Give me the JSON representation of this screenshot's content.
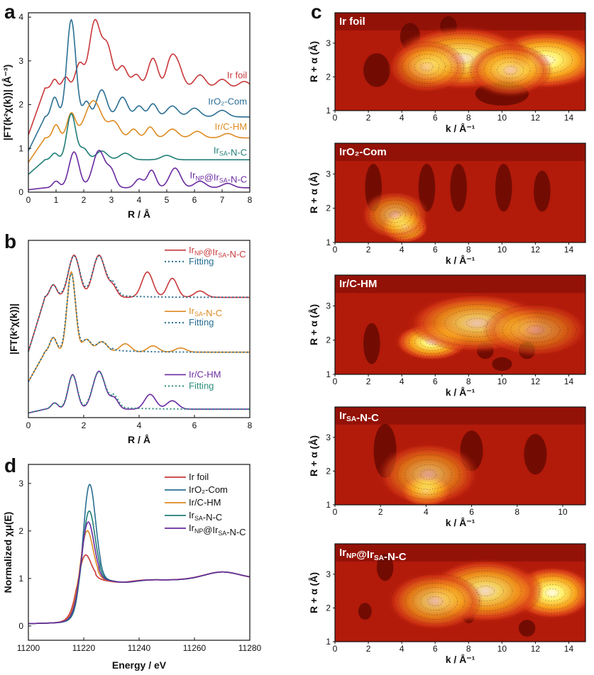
{
  "panels": {
    "a": {
      "label": "a",
      "chart_data": {
        "type": "line",
        "xlabel": "R / Å",
        "ylabel": "|FT(k²χ(k))| (Å⁻³)",
        "xlim": [
          0,
          8
        ],
        "ylim": [
          0,
          4.1
        ],
        "xticks": [
          "0",
          "1",
          "2",
          "3",
          "4",
          "5",
          "6",
          "7",
          "8"
        ],
        "yticks": [
          "0",
          "1",
          "2",
          "3",
          "4"
        ],
        "series": [
          {
            "name": "Ir foil",
            "color": "#c8383a",
            "offset": 2.38,
            "labelY": 2.6,
            "peaks": [
              [
                0.95,
                0.2,
                0.1
              ],
              [
                1.35,
                0.25,
                0.12
              ],
              [
                1.85,
                0.55,
                0.15
              ],
              [
                2.4,
                1.52,
                0.2
              ],
              [
                2.85,
                0.92,
                0.18
              ],
              [
                3.4,
                0.5,
                0.18
              ],
              [
                3.9,
                0.3,
                0.15
              ],
              [
                4.5,
                0.68,
                0.18
              ],
              [
                5.1,
                0.4,
                0.15
              ],
              [
                5.35,
                0.6,
                0.2
              ],
              [
                6.2,
                0.3,
                0.2
              ],
              [
                7.0,
                0.2,
                0.2
              ],
              [
                7.8,
                0.15,
                0.2
              ]
            ]
          },
          {
            "name": "IrO₂-Com",
            "color": "#2a6f93",
            "offset": 1.72,
            "labelY": 2.0,
            "peaks": [
              [
                0.95,
                0.45,
                0.12
              ],
              [
                1.55,
                2.22,
                0.16
              ],
              [
                2.1,
                0.35,
                0.12
              ],
              [
                2.65,
                0.62,
                0.18
              ],
              [
                3.4,
                0.45,
                0.18
              ],
              [
                4.0,
                0.25,
                0.15
              ],
              [
                4.5,
                0.3,
                0.15
              ],
              [
                5.2,
                0.25,
                0.2
              ],
              [
                6.0,
                0.2,
                0.2
              ],
              [
                7.0,
                0.15,
                0.2
              ]
            ]
          },
          {
            "name": "Ir/C-HM",
            "color": "#de8a22",
            "offset": 1.24,
            "labelY": 1.43,
            "peaks": [
              [
                1.0,
                0.3,
                0.12
              ],
              [
                1.55,
                0.55,
                0.15
              ],
              [
                2.35,
                0.85,
                0.3
              ],
              [
                3.1,
                0.35,
                0.2
              ],
              [
                3.8,
                0.2,
                0.15
              ],
              [
                4.4,
                0.25,
                0.15
              ],
              [
                5.2,
                0.2,
                0.2
              ],
              [
                6.1,
                0.15,
                0.2
              ],
              [
                7.2,
                0.1,
                0.2
              ]
            ]
          },
          {
            "name": "Ir_SA-N-C",
            "color": "#1f7d76",
            "offset": 0.74,
            "labelY": 0.88,
            "peaks": [
              [
                0.95,
                0.15,
                0.12
              ],
              [
                1.55,
                1.05,
                0.16
              ],
              [
                2.0,
                0.25,
                0.15
              ],
              [
                2.65,
                0.2,
                0.2
              ],
              [
                3.5,
                0.15,
                0.2
              ],
              [
                5.0,
                0.1,
                0.2
              ]
            ]
          },
          {
            "name": "Ir_NP@Ir_SA-N-C",
            "color": "#6a2aa0",
            "offset": 0.1,
            "labelY": 0.32,
            "peaks": [
              [
                1.0,
                0.15,
                0.12
              ],
              [
                1.65,
                0.82,
                0.18
              ],
              [
                2.55,
                0.85,
                0.22
              ],
              [
                3.0,
                0.35,
                0.15
              ],
              [
                4.0,
                0.2,
                0.15
              ],
              [
                4.45,
                0.4,
                0.15
              ],
              [
                5.3,
                0.45,
                0.2
              ],
              [
                6.2,
                0.15,
                0.2
              ],
              [
                7.2,
                0.1,
                0.2
              ]
            ]
          }
        ]
      }
    },
    "b": {
      "label": "b",
      "chart_data": {
        "type": "line",
        "xlabel": "R / Å",
        "ylabel": "|FT(k²χ(k))|",
        "xlim": [
          0,
          8
        ],
        "ylim": [
          0,
          4.2
        ],
        "xticks": [
          "0",
          "2",
          "4",
          "6",
          "8"
        ],
        "groups": [
          {
            "name": "Ir_NP@Ir_SA-N-C",
            "color": "#c8383a",
            "fitName": "Fitting",
            "fitColor": "#2a6f93",
            "offset": 2.85,
            "labelY": 3.9,
            "peaks": [
              [
                0.9,
                0.3,
                0.12
              ],
              [
                1.65,
                1.0,
                0.2
              ],
              [
                2.55,
                1.0,
                0.22
              ],
              [
                3.05,
                0.25,
                0.15
              ],
              [
                4.3,
                0.6,
                0.2
              ],
              [
                5.2,
                0.45,
                0.18
              ],
              [
                6.2,
                0.15,
                0.2
              ]
            ]
          },
          {
            "name": "Ir_SA-N-C",
            "color": "#de8a22",
            "fitName": "Fitting",
            "fitColor": "#2a6f93",
            "offset": 1.55,
            "labelY": 2.45,
            "peaks": [
              [
                0.9,
                0.35,
                0.12
              ],
              [
                1.55,
                1.9,
                0.15
              ],
              [
                2.1,
                0.3,
                0.15
              ],
              [
                2.65,
                0.25,
                0.2
              ],
              [
                3.5,
                0.2,
                0.2
              ],
              [
                4.5,
                0.15,
                0.2
              ],
              [
                5.5,
                0.1,
                0.2
              ]
            ]
          },
          {
            "name": "Ir/C-HM",
            "color": "#6a2aa0",
            "fitName": "Fitting",
            "fitColor": "#2e8f7a",
            "offset": 0.2,
            "labelY": 0.95,
            "peaks": [
              [
                0.95,
                0.15,
                0.12
              ],
              [
                1.6,
                0.82,
                0.16
              ],
              [
                2.55,
                0.9,
                0.22
              ],
              [
                3.1,
                0.25,
                0.15
              ],
              [
                4.4,
                0.35,
                0.2
              ],
              [
                5.2,
                0.2,
                0.2
              ]
            ]
          }
        ]
      }
    },
    "d": {
      "label": "d",
      "chart_data": {
        "type": "line",
        "xlabel": "Energy / eV",
        "ylabel": "Normalized χμ(E)",
        "xlim": [
          11200,
          11280
        ],
        "ylim": [
          -0.3,
          3.4
        ],
        "xticks": [
          "11200",
          "11220",
          "11240",
          "11260",
          "11280"
        ],
        "yticks": [
          "0",
          "1",
          "2",
          "3"
        ],
        "series": [
          {
            "name": "Ir foil",
            "color": "#c8383a",
            "edge": 11217.5,
            "peakE": 11220.2,
            "peakH": 1.62
          },
          {
            "name": "IrO₂-Com",
            "color": "#2a6f93",
            "edge": 11219,
            "peakE": 11222,
            "peakH": 3.1
          },
          {
            "name": "Ir/C-HM",
            "color": "#de8a22",
            "edge": 11218,
            "peakE": 11221,
            "peakH": 2.12
          },
          {
            "name": "Ir_SA-N-C",
            "color": "#1f7d76",
            "edge": 11218.5,
            "peakE": 11221.8,
            "peakH": 2.52
          },
          {
            "name": "Ir_NP@Ir_SA-N-C",
            "color": "#6a2aa0",
            "edge": 11218.3,
            "peakE": 11221.4,
            "peakH": 2.3
          }
        ]
      }
    },
    "c": {
      "label": "c",
      "plots": [
        {
          "title": "Ir foil",
          "xlabel": "k / Å⁻¹",
          "ylabel": "R + α (Å)",
          "xmax": 15,
          "xticks": [
            "0",
            "2",
            "4",
            "6",
            "8",
            "10",
            "12",
            "14"
          ],
          "yticks": [
            "1",
            "2",
            "3"
          ],
          "hot": [
            [
              12.6,
              2.5,
              2.2,
              0.55,
              1.0
            ],
            [
              7.6,
              2.55,
              2.6,
              0.6,
              0.9
            ],
            [
              10.5,
              2.2,
              1.6,
              0.5,
              0.7
            ],
            [
              5.5,
              2.3,
              1.5,
              0.5,
              0.55
            ]
          ],
          "dark": [
            [
              2.5,
              2.2,
              0.8,
              0.5
            ],
            [
              4.5,
              3.2,
              0.6,
              0.4
            ],
            [
              6.8,
              3.5,
              0.5,
              0.3
            ],
            [
              10,
              1.5,
              1.6,
              0.35
            ]
          ]
        },
        {
          "title": "IrO₂-Com",
          "xlabel": "k / Å⁻¹",
          "ylabel": "R + α (Å)",
          "xmax": 15,
          "xticks": [
            "0",
            "2",
            "4",
            "6",
            "8",
            "10",
            "12",
            "14"
          ],
          "yticks": [
            "1",
            "2",
            "3"
          ],
          "hot": [
            [
              4.2,
              1.45,
              0.9,
              0.3,
              1.0
            ],
            [
              3.6,
              1.8,
              1.3,
              0.45,
              0.6
            ]
          ],
          "dark": [
            [
              2.3,
              2.6,
              0.5,
              0.7
            ],
            [
              5.5,
              2.6,
              0.5,
              0.7
            ],
            [
              7.4,
              2.6,
              0.5,
              0.7
            ],
            [
              10.1,
              2.6,
              0.5,
              0.7
            ],
            [
              12.4,
              2.5,
              0.5,
              0.6
            ]
          ]
        },
        {
          "title": "Ir/C-HM",
          "xlabel": "k / Å⁻¹",
          "ylabel": "R + α (Å)",
          "xmax": 15,
          "xticks": [
            "0",
            "2",
            "4",
            "6",
            "8",
            "10",
            "12",
            "14"
          ],
          "yticks": [
            "1",
            "2",
            "3"
          ],
          "hot": [
            [
              5.8,
              1.95,
              1.4,
              0.35,
              1.0
            ],
            [
              8.5,
              2.5,
              2.6,
              0.55,
              0.75
            ],
            [
              12,
              2.3,
              2.0,
              0.5,
              0.5
            ]
          ],
          "dark": [
            [
              2.2,
              1.9,
              0.5,
              0.6
            ],
            [
              9,
              1.7,
              0.5,
              0.25
            ],
            [
              11.5,
              1.7,
              0.5,
              0.25
            ],
            [
              10,
              1.3,
              0.6,
              0.2
            ]
          ]
        },
        {
          "title": "Ir_SA-N-C",
          "xlabel": "k / Å⁻¹",
          "ylabel": "R + α (Å)",
          "xmax": 11,
          "xticks": [
            "0",
            "2",
            "4",
            "6",
            "8",
            "10"
          ],
          "yticks": [
            "1",
            "2",
            "3"
          ],
          "hot": [
            [
              4.0,
              1.4,
              0.7,
              0.3,
              1.0
            ],
            [
              4.1,
              1.9,
              1.4,
              0.6,
              0.6
            ]
          ],
          "dark": [
            [
              2.2,
              2.6,
              0.5,
              0.8
            ],
            [
              6.0,
              2.6,
              0.5,
              0.6
            ],
            [
              8.8,
              2.5,
              0.5,
              0.6
            ]
          ]
        },
        {
          "title": "Ir_NP@Ir_SA-N-C",
          "xlabel": "k / Å⁻¹",
          "ylabel": "R + α (Å)",
          "xmax": 15,
          "xticks": [
            "0",
            "2",
            "4",
            "6",
            "8",
            "10",
            "12",
            "14"
          ],
          "yticks": [
            "1",
            "2",
            "3"
          ],
          "hot": [
            [
              13,
              2.45,
              1.6,
              0.5,
              1.0
            ],
            [
              9,
              2.5,
              2.2,
              0.6,
              0.85
            ],
            [
              6,
              2.2,
              1.8,
              0.55,
              0.7
            ]
          ],
          "dark": [
            [
              1.8,
              1.9,
              0.4,
              0.25
            ],
            [
              8,
              1.8,
              0.4,
              0.25
            ],
            [
              11.5,
              1.4,
              0.5,
              0.25
            ],
            [
              3,
              3.2,
              0.5,
              0.4
            ]
          ]
        }
      ]
    }
  }
}
